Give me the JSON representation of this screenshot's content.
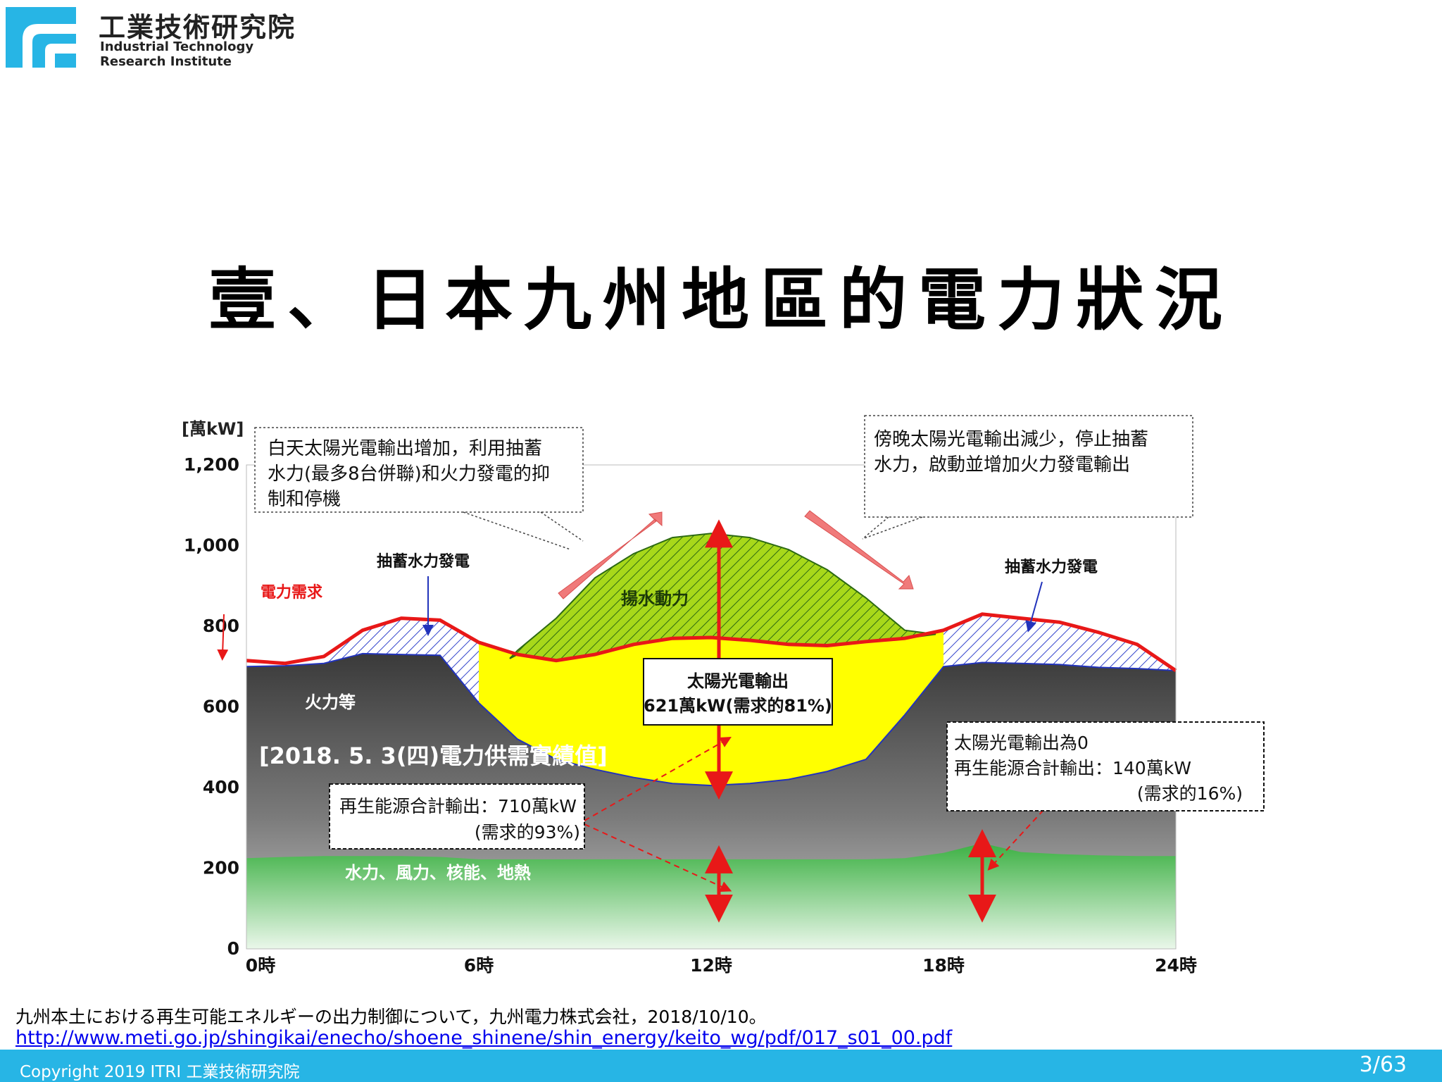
{
  "header": {
    "org_name_zh": "工業技術研究院",
    "org_name_en_line1": "Industrial Technology",
    "org_name_en_line2": "Research Institute",
    "logo_color": "#27b5e5"
  },
  "slide_title": "壹、日本九州地區的電力狀況",
  "chart_data": {
    "type": "area",
    "ylabel": "[萬kW]",
    "ylim": [
      0,
      1200
    ],
    "y_ticks": [
      "0",
      "200",
      "400",
      "600",
      "800",
      "1,000",
      "1,200"
    ],
    "x_ticks": [
      "0時",
      "6時",
      "12時",
      "18時",
      "24時"
    ],
    "xlim": [
      0,
      24
    ],
    "x": [
      0,
      1,
      2,
      3,
      4,
      5,
      6,
      7,
      8,
      9,
      10,
      11,
      12,
      13,
      14,
      15,
      16,
      17,
      18,
      19,
      20,
      21,
      22,
      23,
      24
    ],
    "series": [
      {
        "name": "水力、風力、核能、地熱",
        "color": "#3cb043",
        "values": [
          225,
          228,
          230,
          230,
          230,
          228,
          222,
          222,
          222,
          222,
          222,
          222,
          222,
          222,
          222,
          222,
          222,
          225,
          238,
          262,
          240,
          235,
          232,
          230,
          230
        ]
      },
      {
        "name": "火力等",
        "color": "#4a4a4a",
        "values": [
          700,
          702,
          708,
          732,
          730,
          728,
          610,
          520,
          470,
          445,
          425,
          410,
          405,
          410,
          420,
          440,
          470,
          580,
          700,
          710,
          708,
          705,
          698,
          695,
          690
        ]
      },
      {
        "name": "太陽光電輸出",
        "color": "#ffff00"
      },
      {
        "name": "揚水動力",
        "color": "#a8d81a",
        "values": [
          null,
          null,
          null,
          null,
          null,
          null,
          null,
          740,
          820,
          920,
          980,
          1020,
          1030,
          1020,
          990,
          940,
          870,
          790,
          null,
          null,
          null,
          null,
          null,
          null,
          null
        ]
      },
      {
        "name": "抽蓄水力發電",
        "color": "#3344cc"
      },
      {
        "name": "電力需求",
        "color": "#e81818",
        "values": [
          715,
          708,
          725,
          790,
          820,
          815,
          760,
          730,
          715,
          730,
          755,
          770,
          772,
          765,
          755,
          752,
          762,
          770,
          790,
          830,
          820,
          810,
          785,
          755,
          690
        ]
      }
    ],
    "annotations": {
      "pumped_hydro_label": "抽蓄水力發電",
      "demand_label": "電力需求",
      "pumping_label": "揚水動力",
      "thermal_label": "火力等",
      "baseload_label": "水力、風力、核能、地熱",
      "date_label": "[2018. 5. 3(四)電力供需實績值]",
      "callout_day": [
        "白天太陽光電輸出增加，利用抽蓄",
        "水力(最多8台併聯)和火力發電的抑",
        "制和停機"
      ],
      "callout_evening": [
        "傍晚太陽光電輸出減少，停止抽蓄",
        "水力，啟動並增加火力發電輸出"
      ],
      "solar_box": [
        "太陽光電輸出",
        "621萬kW(需求的81%)"
      ],
      "renew_noon_box": [
        "再生能源合計輸出：710萬kW",
        "(需求的93%)"
      ],
      "renew_evening_box": [
        "太陽光電輸出為0",
        "再生能源合計輸出：140萬kW",
        "(需求的16%)"
      ]
    }
  },
  "citation": {
    "text": "九州本土における再生可能エネルギーの出力制御について，九州電力株式会社，2018/10/10。",
    "link": "http://www.meti.go.jp/shingikai/enecho/shoene_shinene/shin_energy/keito_wg/pdf/017_s01_00.pdf"
  },
  "footer": {
    "copyright": "Copyright 2019 ITRI 工業技術研究院",
    "page_number": "3/63",
    "bar_color": "#27b5e5"
  }
}
